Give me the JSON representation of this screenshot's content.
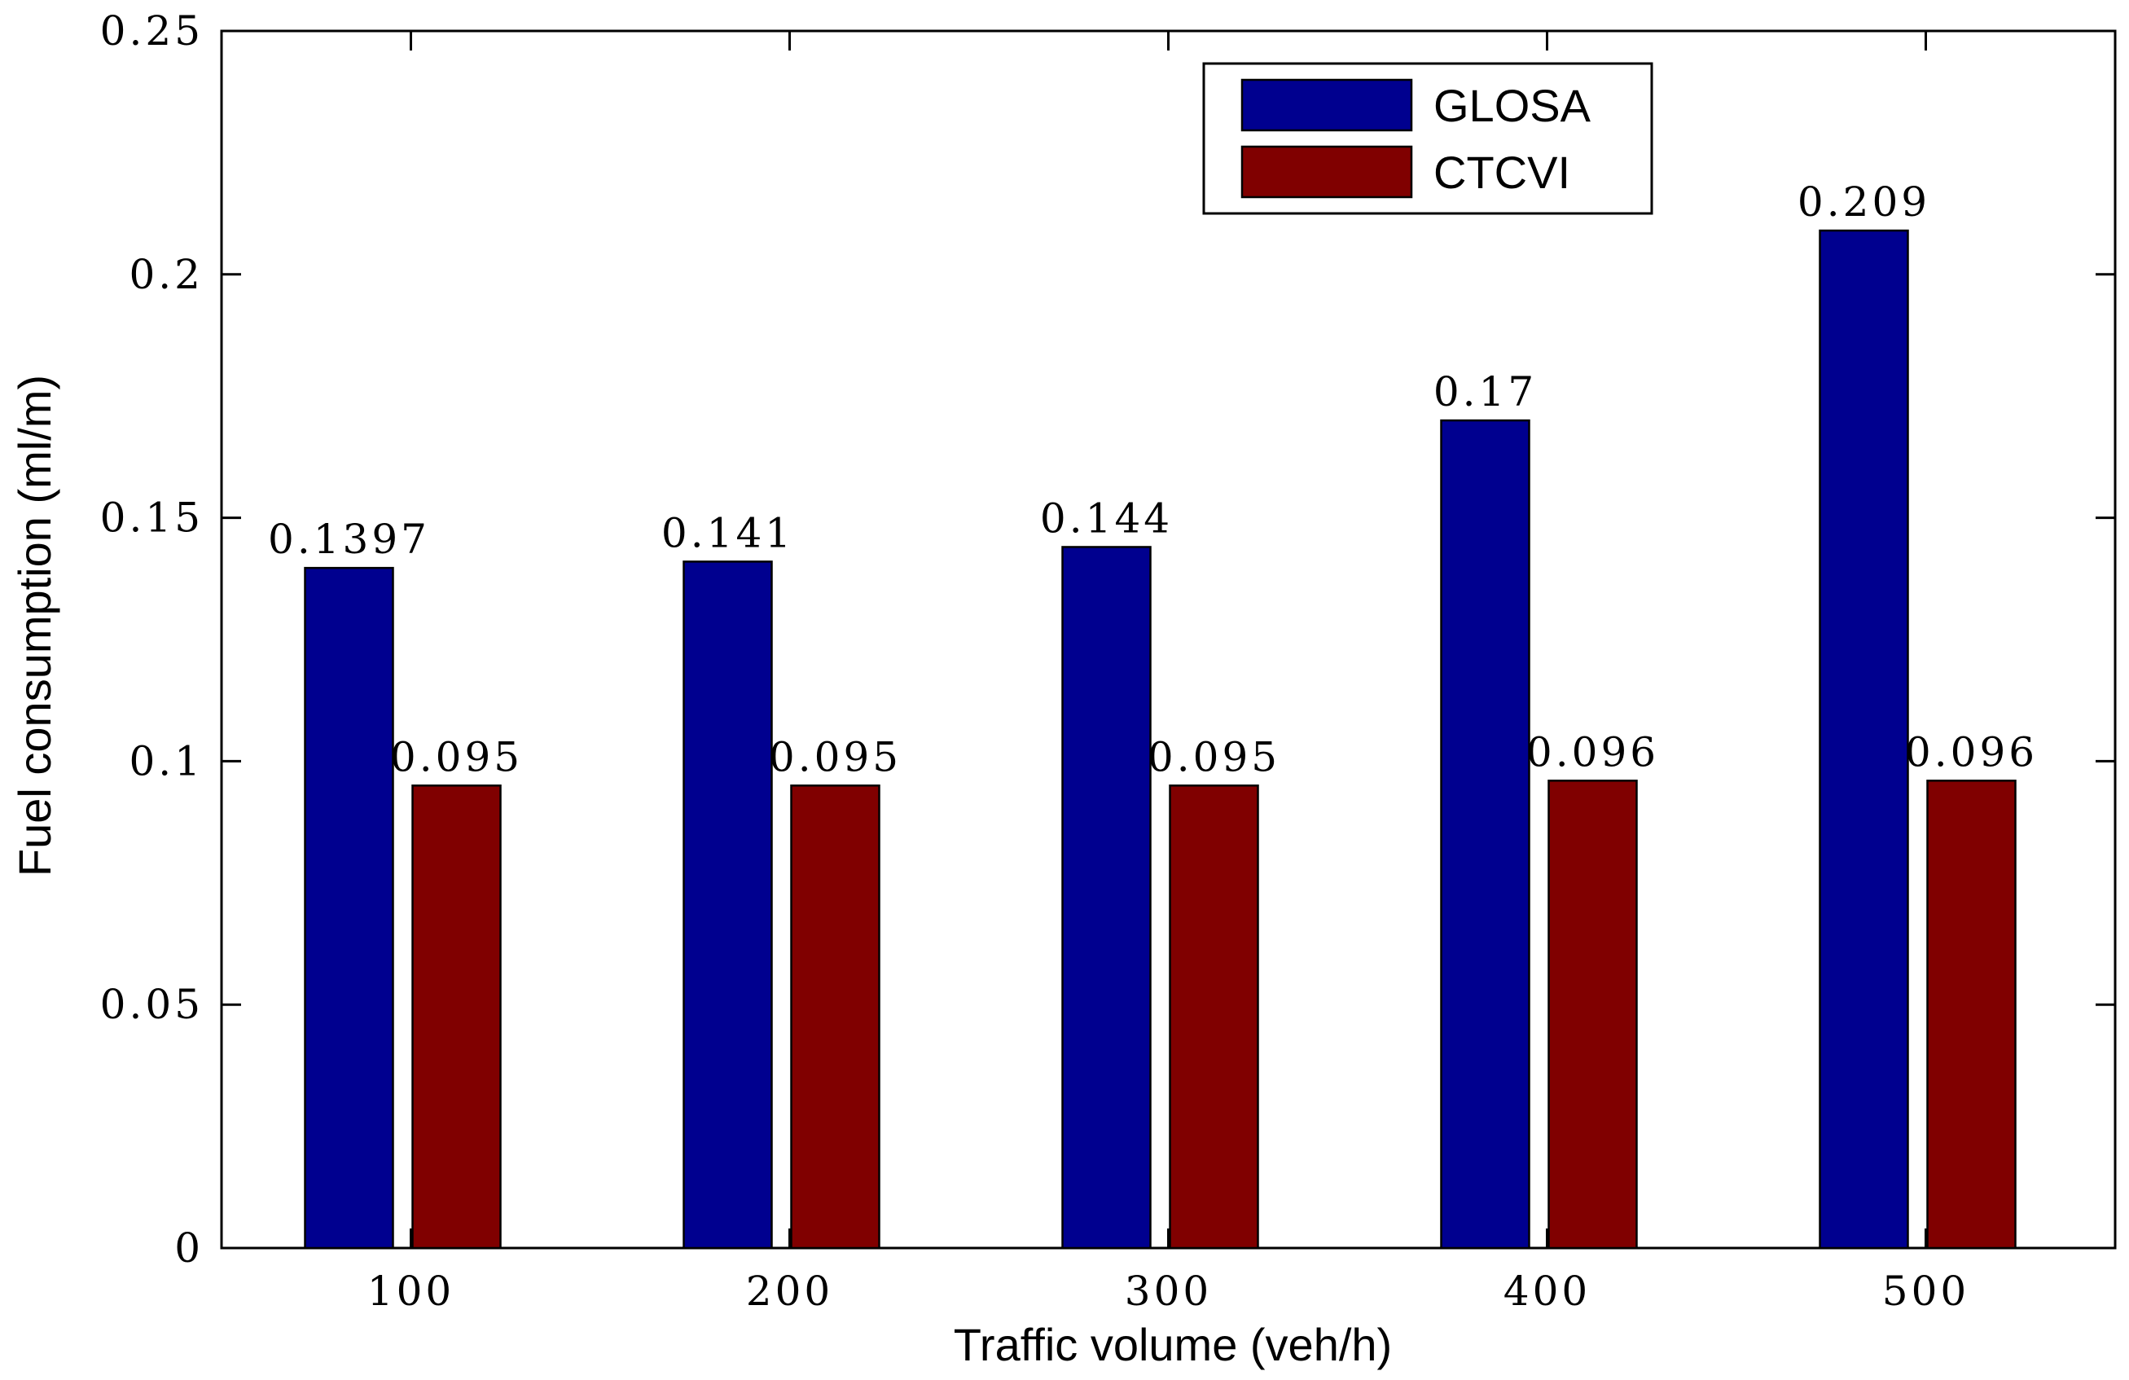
{
  "chart_data": {
    "type": "bar",
    "title": "",
    "xlabel": "Traffic volume (veh/h)",
    "ylabel": "Fuel consumption (ml/m)",
    "categories": [
      "100",
      "200",
      "300",
      "400",
      "500"
    ],
    "ylim": [
      0,
      0.25
    ],
    "yticks": [
      0,
      0.05,
      0.1,
      0.15,
      0.2,
      0.25
    ],
    "ytick_labels": [
      "0",
      "0.05",
      "0.1",
      "0.15",
      "0.2",
      "0.25"
    ],
    "grid": false,
    "legend_position": "top-right",
    "series": [
      {
        "name": "GLOSA",
        "color": "#00008f",
        "values": [
          0.1397,
          0.141,
          0.144,
          0.17,
          0.209
        ],
        "labels": [
          "0.1397",
          "0.141",
          "0.144",
          "0.17",
          "0.209"
        ]
      },
      {
        "name": "CTCVI",
        "color": "#800000",
        "values": [
          0.095,
          0.095,
          0.095,
          0.096,
          0.096
        ],
        "labels": [
          "0.095",
          "0.095",
          "0.095",
          "0.096",
          "0.096"
        ]
      }
    ]
  }
}
